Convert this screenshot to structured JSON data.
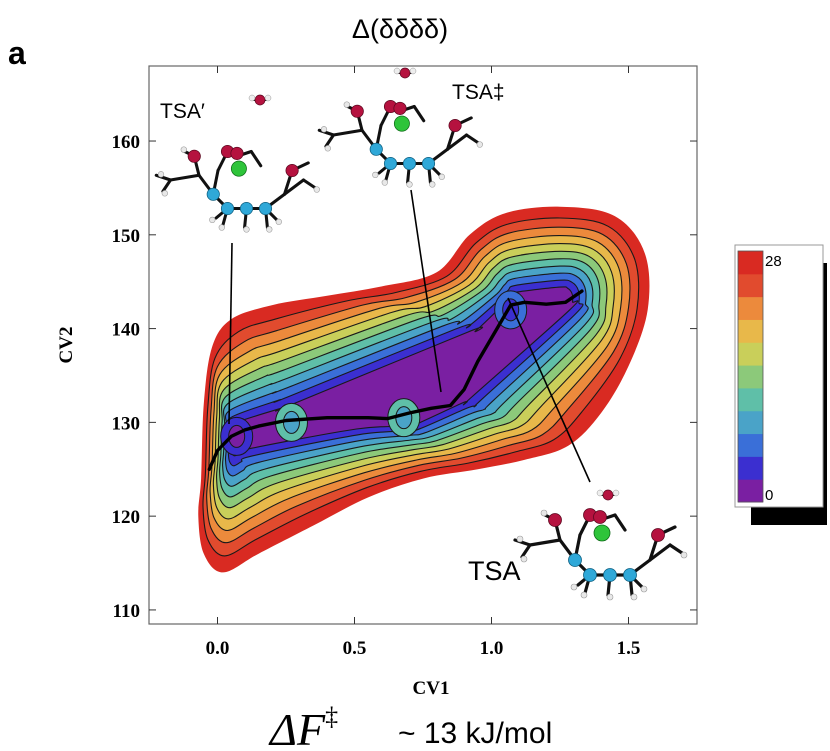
{
  "panel_label": "a",
  "chart_data": {
    "type": "contour",
    "title": "Δ(δδδδ)",
    "xlabel": "CV1",
    "ylabel": "CV2",
    "xlim": [
      -0.25,
      1.75
    ],
    "ylim": [
      108.5,
      168
    ],
    "x_ticks": [
      "0.0",
      "0.5",
      "1.0",
      "1.5"
    ],
    "x_tick_values": [
      0.0,
      0.5,
      1.0,
      1.5
    ],
    "y_ticks": [
      "110",
      "120",
      "130",
      "140",
      "150",
      "160"
    ],
    "y_tick_values": [
      110,
      120,
      130,
      140,
      150,
      160
    ],
    "colorbar": {
      "min_label": "0",
      "max_label": "28",
      "min": 0,
      "max": 28,
      "colors": [
        "#7a1fa2",
        "#3b2fd0",
        "#3a6fd8",
        "#4aa3c8",
        "#5fbfa8",
        "#8cc97a",
        "#c9cf5a",
        "#e8b84a",
        "#ec8a3c",
        "#e14b2e",
        "#d92a22"
      ]
    },
    "minima": [
      {
        "x": 0.07,
        "y": 128.5,
        "level": 2
      },
      {
        "x": 0.27,
        "y": 130.0,
        "level": 5
      },
      {
        "x": 0.68,
        "y": 130.5,
        "level": 5
      },
      {
        "x": 1.07,
        "y": 142.0,
        "level": 3
      }
    ],
    "path": {
      "x": [
        -0.03,
        0.0,
        0.05,
        0.1,
        0.15,
        0.25,
        0.4,
        0.55,
        0.62,
        0.7,
        0.78,
        0.85,
        0.9,
        0.95,
        1.02,
        1.07,
        1.12,
        1.2,
        1.27,
        1.33
      ],
      "y": [
        125.0,
        127.0,
        128.5,
        129.2,
        129.6,
        130.2,
        130.5,
        130.5,
        130.4,
        131.0,
        131.5,
        131.8,
        133.5,
        136.5,
        140.0,
        142.5,
        142.8,
        142.6,
        142.8,
        144.0
      ]
    },
    "annotations": [
      {
        "label": "TSA′",
        "x": 0.07,
        "y": 130.0
      },
      {
        "label": "TSA‡",
        "x": 0.82,
        "y": 132.0
      },
      {
        "label": "TSA",
        "x": 1.05,
        "y": 142.0
      }
    ]
  },
  "caption": {
    "symbol": "ΔF",
    "superscript": "‡",
    "text": "~ 13 kJ/mol"
  }
}
